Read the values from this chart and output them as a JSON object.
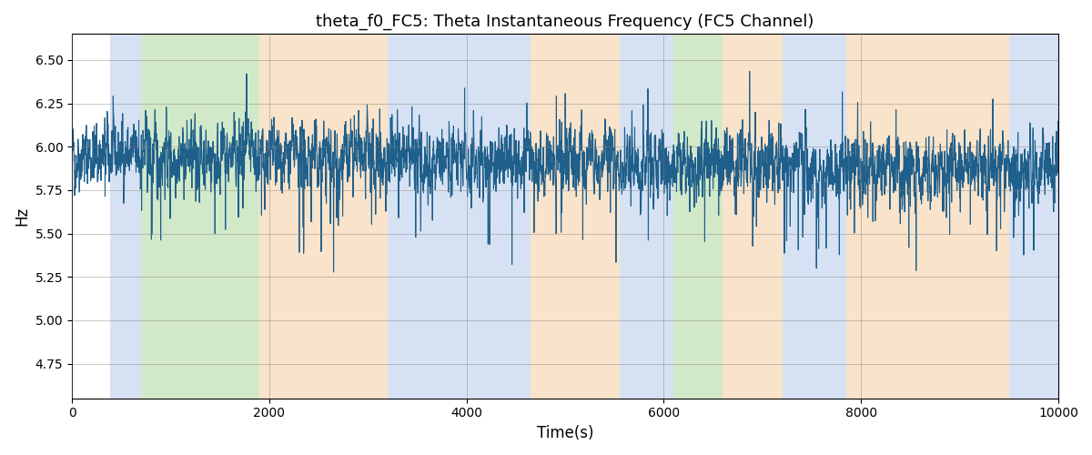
{
  "title": "theta_f0_FC5: Theta Instantaneous Frequency (FC5 Channel)",
  "xlabel": "Time(s)",
  "ylabel": "Hz",
  "xlim": [
    0,
    10000
  ],
  "ylim": [
    4.55,
    6.65
  ],
  "yticks": [
    4.75,
    5.0,
    5.25,
    5.5,
    5.75,
    6.0,
    6.25,
    6.5
  ],
  "xticks": [
    0,
    2000,
    4000,
    6000,
    8000,
    10000
  ],
  "line_color": "#1f5f8b",
  "line_width": 0.8,
  "bg_bands": [
    {
      "xmin": 390,
      "xmax": 700,
      "color": "#aec6e8",
      "alpha": 0.5
    },
    {
      "xmin": 700,
      "xmax": 1900,
      "color": "#90c878",
      "alpha": 0.4
    },
    {
      "xmin": 1900,
      "xmax": 3200,
      "color": "#f5c897",
      "alpha": 0.5
    },
    {
      "xmin": 3200,
      "xmax": 4650,
      "color": "#aec6e8",
      "alpha": 0.5
    },
    {
      "xmin": 4650,
      "xmax": 5550,
      "color": "#f5c897",
      "alpha": 0.5
    },
    {
      "xmin": 5550,
      "xmax": 6100,
      "color": "#aec6e8",
      "alpha": 0.5
    },
    {
      "xmin": 6100,
      "xmax": 6600,
      "color": "#90c878",
      "alpha": 0.4
    },
    {
      "xmin": 6600,
      "xmax": 7200,
      "color": "#f5c897",
      "alpha": 0.5
    },
    {
      "xmin": 7200,
      "xmax": 7850,
      "color": "#aec6e8",
      "alpha": 0.5
    },
    {
      "xmin": 7850,
      "xmax": 9500,
      "color": "#f5c897",
      "alpha": 0.5
    },
    {
      "xmin": 9500,
      "xmax": 10000,
      "color": "#aec6e8",
      "alpha": 0.5
    }
  ],
  "seed": 42,
  "n_points": 5000,
  "base_freq": 5.95,
  "noise_std": 0.1,
  "spike_prob": 0.025,
  "spike_down_mag": 0.55,
  "spike_up_mag": 0.35
}
